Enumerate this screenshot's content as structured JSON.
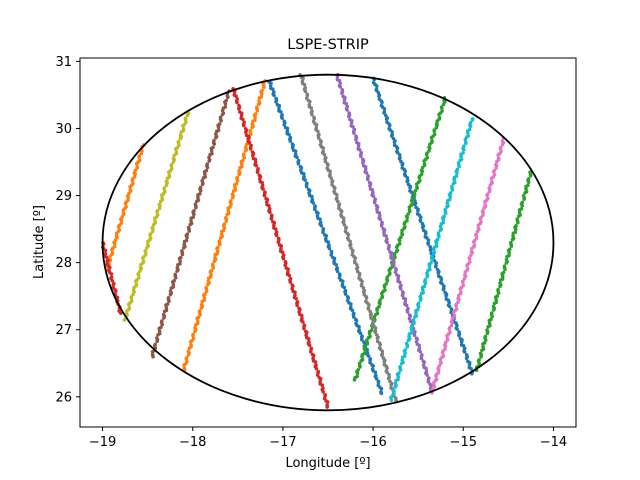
{
  "chart_data": {
    "type": "scatter",
    "title": "LSPE-STRIP",
    "xlabel": "Longitude [º]",
    "ylabel": "Latitude [º]",
    "xlim": [
      -19.25,
      -13.75
    ],
    "ylim": [
      25.55,
      31.05
    ],
    "xticks": [
      -19,
      -18,
      -17,
      -16,
      -15,
      -14
    ],
    "yticks": [
      26,
      27,
      28,
      29,
      30,
      31
    ],
    "grid": false,
    "ellipse": {
      "center": [
        -16.5,
        28.3
      ],
      "semi_axis_lon": 2.5,
      "semi_axis_lat": 2.5,
      "color": "#000000"
    },
    "series": [
      {
        "color": "#1f77b4",
        "start": [
          -17.15,
          30.7
        ],
        "end": [
          -15.9,
          26.05
        ]
      },
      {
        "color": "#1f77b4",
        "start": [
          -16.0,
          30.75
        ],
        "end": [
          -14.9,
          26.35
        ]
      },
      {
        "color": "#ff7f0e",
        "start": [
          -18.55,
          29.75
        ],
        "end": [
          -18.95,
          27.9
        ]
      },
      {
        "color": "#ff7f0e",
        "start": [
          -17.2,
          30.7
        ],
        "end": [
          -18.1,
          26.4
        ]
      },
      {
        "color": "#2ca02c",
        "start": [
          -15.2,
          30.45
        ],
        "end": [
          -16.2,
          26.25
        ]
      },
      {
        "color": "#2ca02c",
        "start": [
          -14.25,
          29.35
        ],
        "end": [
          -14.85,
          26.4
        ]
      },
      {
        "color": "#d62728",
        "start": [
          -17.55,
          30.6
        ],
        "end": [
          -16.5,
          25.85
        ]
      },
      {
        "color": "#d62728",
        "start": [
          -19.0,
          28.3
        ],
        "end": [
          -18.8,
          27.25
        ]
      },
      {
        "color": "#9467bd",
        "start": [
          -16.4,
          30.8
        ],
        "end": [
          -15.35,
          26.1
        ]
      },
      {
        "color": "#8c564b",
        "start": [
          -17.6,
          30.55
        ],
        "end": [
          -18.45,
          26.6
        ]
      },
      {
        "color": "#e377c2",
        "start": [
          -14.55,
          29.85
        ],
        "end": [
          -15.35,
          26.05
        ]
      },
      {
        "color": "#7f7f7f",
        "start": [
          -16.8,
          30.8
        ],
        "end": [
          -15.75,
          25.95
        ]
      },
      {
        "color": "#bcbd22",
        "start": [
          -18.05,
          30.25
        ],
        "end": [
          -18.75,
          27.15
        ]
      },
      {
        "color": "#17becf",
        "start": [
          -14.9,
          30.15
        ],
        "end": [
          -15.8,
          25.95
        ]
      }
    ]
  }
}
